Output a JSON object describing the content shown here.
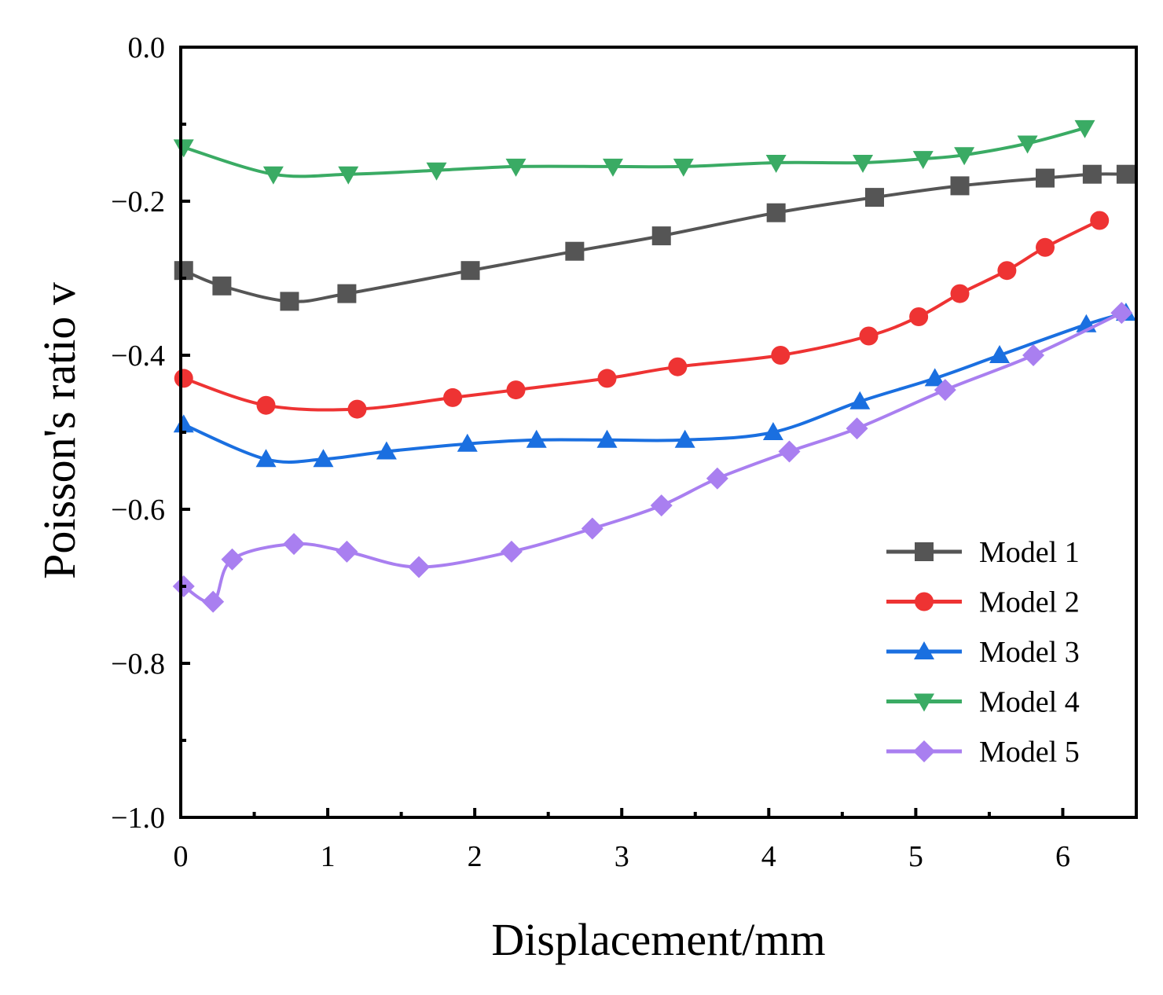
{
  "chart_data": {
    "type": "line",
    "title": "",
    "xlabel": "Displacement/mm",
    "ylabel": "Poisson's ratio v",
    "xlim": [
      0,
      6.5
    ],
    "ylim": [
      -1.0,
      0.0
    ],
    "x_ticks": [
      0,
      1,
      2,
      3,
      4,
      5,
      6
    ],
    "x_tick_labels": [
      "0",
      "1",
      "2",
      "3",
      "4",
      "5",
      "6"
    ],
    "y_ticks": [
      0.0,
      -0.2,
      -0.4,
      -0.6,
      -0.8,
      -1.0
    ],
    "y_tick_labels": [
      "0.0",
      "−0.2",
      "−0.4",
      "−0.6",
      "−0.8",
      "−1.0"
    ],
    "grid": false,
    "legend_position": "bottom-right",
    "series": [
      {
        "name": "Model 1",
        "color": "#555555",
        "marker": "square",
        "x": [
          0.02,
          0.28,
          0.74,
          1.13,
          1.97,
          2.68,
          3.27,
          4.05,
          4.72,
          5.3,
          5.88,
          6.2,
          6.43
        ],
        "y": [
          -0.29,
          -0.31,
          -0.33,
          -0.32,
          -0.29,
          -0.265,
          -0.245,
          -0.215,
          -0.195,
          -0.18,
          -0.17,
          -0.165,
          -0.165
        ]
      },
      {
        "name": "Model 2",
        "color": "#ee3333",
        "marker": "circle",
        "x": [
          0.02,
          0.58,
          1.2,
          1.85,
          2.28,
          2.9,
          3.38,
          4.08,
          4.68,
          5.02,
          5.3,
          5.62,
          5.88,
          6.25
        ],
        "y": [
          -0.43,
          -0.465,
          -0.47,
          -0.455,
          -0.445,
          -0.43,
          -0.415,
          -0.4,
          -0.375,
          -0.35,
          -0.32,
          -0.29,
          -0.26,
          -0.225
        ]
      },
      {
        "name": "Model 3",
        "color": "#1a6fe0",
        "marker": "triangle-up",
        "x": [
          0.02,
          0.58,
          0.97,
          1.4,
          1.95,
          2.42,
          2.9,
          3.43,
          4.03,
          4.62,
          5.13,
          5.57,
          6.16,
          6.43
        ],
        "y": [
          -0.49,
          -0.535,
          -0.535,
          -0.525,
          -0.515,
          -0.51,
          -0.51,
          -0.51,
          -0.5,
          -0.46,
          -0.43,
          -0.4,
          -0.36,
          -0.345
        ]
      },
      {
        "name": "Model 4",
        "color": "#3aab64",
        "marker": "triangle-down",
        "x": [
          0.02,
          0.63,
          1.14,
          1.74,
          2.28,
          2.94,
          3.42,
          4.05,
          4.64,
          5.05,
          5.33,
          5.76,
          6.15
        ],
        "y": [
          -0.13,
          -0.165,
          -0.165,
          -0.16,
          -0.155,
          -0.155,
          -0.155,
          -0.15,
          -0.15,
          -0.145,
          -0.14,
          -0.125,
          -0.105
        ]
      },
      {
        "name": "Model 5",
        "color": "#a97ff0",
        "marker": "diamond",
        "x": [
          0.02,
          0.22,
          0.35,
          0.77,
          1.13,
          1.62,
          2.25,
          2.8,
          3.27,
          3.65,
          4.14,
          4.6,
          5.2,
          5.8,
          6.4
        ],
        "y": [
          -0.7,
          -0.72,
          -0.665,
          -0.645,
          -0.655,
          -0.675,
          -0.655,
          -0.625,
          -0.595,
          -0.56,
          -0.525,
          -0.495,
          -0.445,
          -0.4,
          -0.345
        ]
      }
    ]
  }
}
